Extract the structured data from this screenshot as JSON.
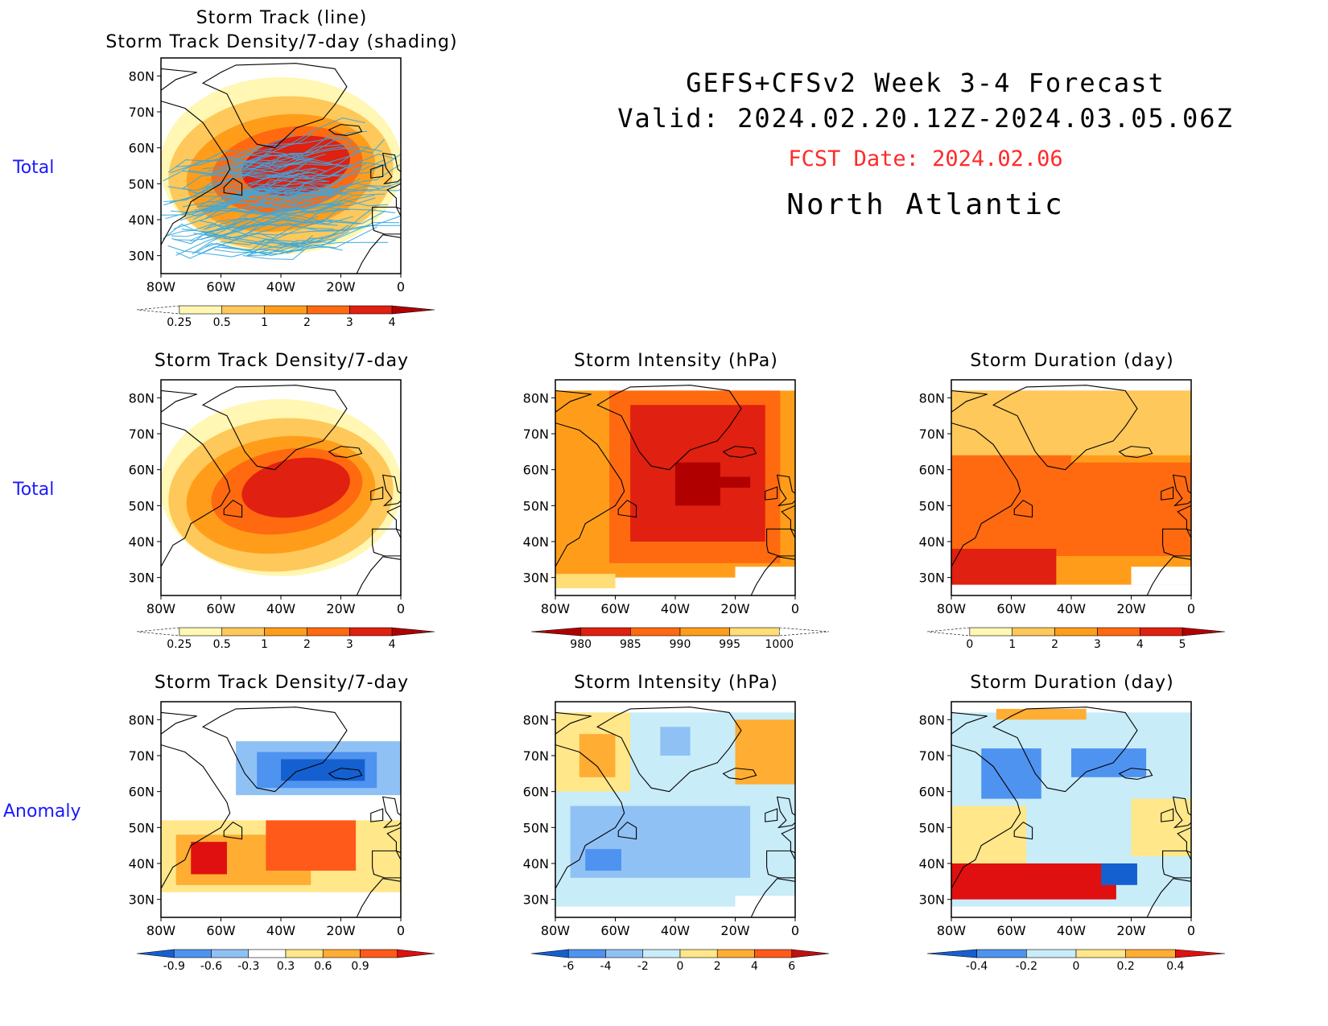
{
  "header": {
    "line1": "GEFS+CFSv2 Week 3-4 Forecast",
    "line2": "Valid: 2024.02.20.12Z-2024.03.05.06Z",
    "fcst_date": "FCST Date: 2024.02.06",
    "region": "North Atlantic"
  },
  "row_labels": [
    "Total",
    "Total",
    "Anomaly"
  ],
  "axes": {
    "lat_labels": [
      "80N",
      "70N",
      "60N",
      "50N",
      "40N",
      "30N"
    ],
    "lon_labels": [
      "80W",
      "60W",
      "40W",
      "20W",
      "0"
    ]
  },
  "panels": [
    {
      "id": "p0",
      "title1": "Storm Track (line)",
      "title2": "Storm Track Density/7-day (shading)",
      "colorbar": {
        "labels": [
          "0.25",
          "0.5",
          "1",
          "2",
          "3",
          "4"
        ],
        "colors": [
          "#ffffff",
          "#fff7b3",
          "#ffc85a",
          "#ff9d1a",
          "#ff6a10",
          "#e02010",
          "#b00000"
        ]
      }
    },
    {
      "id": "p1",
      "title1": "Storm Track Density/7-day",
      "colorbar": {
        "labels": [
          "0.25",
          "0.5",
          "1",
          "2",
          "3",
          "4"
        ],
        "colors": [
          "#ffffff",
          "#fff7b3",
          "#ffc85a",
          "#ff9d1a",
          "#ff6a10",
          "#e02010",
          "#b00000"
        ]
      }
    },
    {
      "id": "p2",
      "title1": "Storm Intensity (hPa)",
      "colorbar": {
        "labels": [
          "980",
          "985",
          "990",
          "995",
          "1000"
        ],
        "colors": [
          "#b00000",
          "#e02010",
          "#ff6a10",
          "#ff9d1a",
          "#ffdd77",
          "#ffffff"
        ]
      }
    },
    {
      "id": "p3",
      "title1": "Storm Duration (day)",
      "colorbar": {
        "labels": [
          "0",
          "1",
          "2",
          "3",
          "4",
          "5"
        ],
        "colors": [
          "#ffffff",
          "#fff7b3",
          "#ffc85a",
          "#ff9d1a",
          "#ff6a10",
          "#e02010",
          "#b00000"
        ]
      }
    },
    {
      "id": "p4",
      "title1": "Storm Track Density/7-day",
      "colorbar": {
        "labels": [
          "-0.9",
          "-0.6",
          "-0.3",
          "0.3",
          "0.6",
          "0.9"
        ],
        "colors": [
          "#1560d0",
          "#4f93f0",
          "#8fc1f5",
          "#ffffff",
          "#ffe78a",
          "#ffad33",
          "#ff5a1a",
          "#e01010"
        ]
      }
    },
    {
      "id": "p5",
      "title1": "Storm Intensity (hPa)",
      "colorbar": {
        "labels": [
          "-6",
          "-4",
          "-2",
          "0",
          "2",
          "4",
          "6"
        ],
        "colors": [
          "#1560d0",
          "#4f93f0",
          "#8fc1f5",
          "#c8ecf8",
          "#ffe78a",
          "#ffad33",
          "#ff5a1a",
          "#c01010"
        ]
      }
    },
    {
      "id": "p6",
      "title1": "Storm Duration (day)",
      "colorbar": {
        "labels": [
          "-0.4",
          "-0.2",
          "0",
          "0.2",
          "0.4"
        ],
        "colors": [
          "#1560d0",
          "#4f93f0",
          "#c8ecf8",
          "#ffe78a",
          "#ffad33",
          "#e01010"
        ]
      }
    }
  ]
}
